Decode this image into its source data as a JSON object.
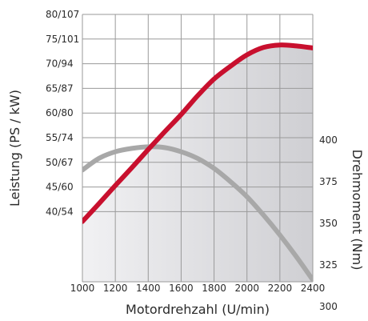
{
  "chart_data": {
    "type": "line",
    "xlabel": "Motordrehzahl (U/min)",
    "ylabel_left": "Leistung (PS / kW)",
    "ylabel_right": "Drehmoment (Nm)",
    "x_ticks": [
      1000,
      1200,
      1400,
      1600,
      1800,
      2000,
      2200,
      2400
    ],
    "xlim": [
      1000,
      2400
    ],
    "y_left_ticks": [
      {
        "ps": 40,
        "label": "40/54"
      },
      {
        "ps": 45,
        "label": "45/60"
      },
      {
        "ps": 50,
        "label": "50/67"
      },
      {
        "ps": 55,
        "label": "55/74"
      },
      {
        "ps": 60,
        "label": "60/80"
      },
      {
        "ps": 65,
        "label": "65/87"
      },
      {
        "ps": 70,
        "label": "70/94"
      },
      {
        "ps": 75,
        "label": "75/101"
      },
      {
        "ps": 80,
        "label": "80/107"
      }
    ],
    "y_left_lim": [
      38,
      80
    ],
    "y_right_ticks": [
      300,
      325,
      350,
      375,
      400
    ],
    "series": [
      {
        "axis": "left",
        "color": "#c8102e",
        "x": [
          1000,
          1100,
          1200,
          1300,
          1400,
          1500,
          1600,
          1700,
          1800,
          1900,
          2000,
          2100,
          2200,
          2300,
          2400
        ],
        "y": [
          38,
          41.6,
          45.3,
          48.9,
          52.6,
          56.2,
          59.7,
          63.5,
          66.9,
          69.5,
          71.8,
          73.3,
          73.8,
          73.6,
          73.2
        ]
      },
      {
        "axis": "right",
        "color": "#a8a8a8",
        "x": [
          1000,
          1100,
          1200,
          1300,
          1400,
          1500,
          1600,
          1700,
          1800,
          1900,
          2000,
          2100,
          2200,
          2300,
          2400
        ],
        "y": [
          382,
          389,
          393,
          395,
          396,
          395.5,
          393,
          389,
          383,
          375,
          366,
          355,
          343,
          330,
          316
        ]
      }
    ],
    "colors": {
      "power": "#c8102e",
      "torque": "#a8a8a8",
      "area": "#d4d4d8",
      "grid": "#9a9a9a"
    }
  }
}
